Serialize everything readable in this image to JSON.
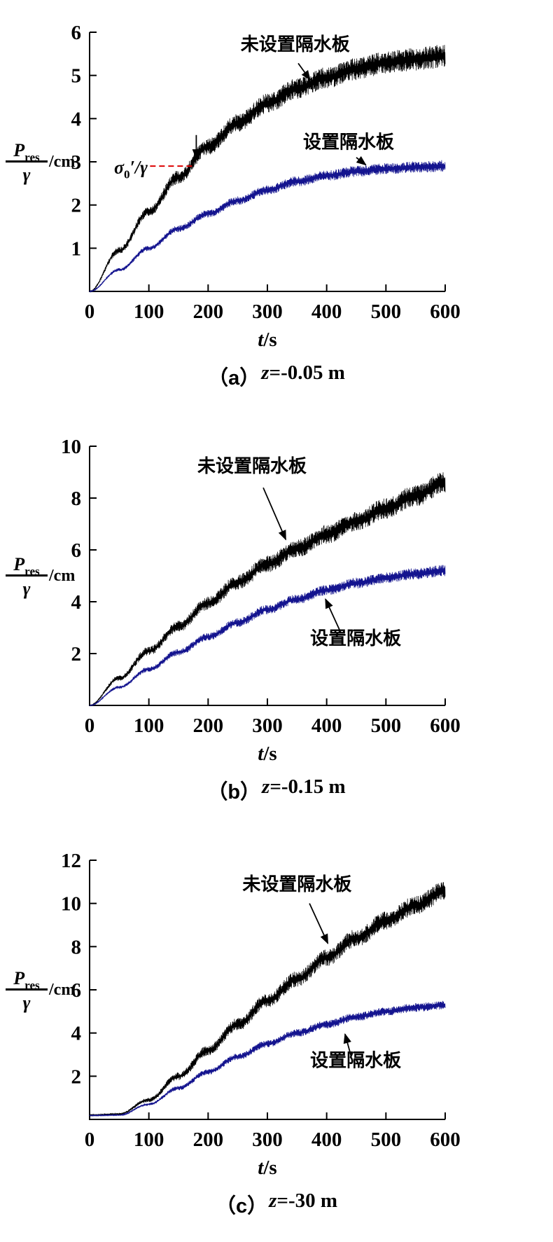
{
  "page": {
    "background": "#ffffff"
  },
  "colors": {
    "black_series": "#000000",
    "blue_series": "#14148f",
    "ref_line_red": "#dd0000"
  },
  "chart_data": [
    {
      "type": "line",
      "caption": {
        "index": "（a）",
        "var": "z",
        "value": "=-0.05 m"
      },
      "xlim": [
        0,
        600
      ],
      "ylim": [
        0,
        6
      ],
      "xticks": [
        0,
        100,
        200,
        300,
        400,
        500,
        600
      ],
      "yticks": [
        1,
        2,
        3,
        4,
        5,
        6
      ],
      "xlabel_parts": [
        {
          "t": "t",
          "i": 1
        },
        {
          "t": "/s"
        }
      ],
      "ylabel": {
        "num_parts": [
          {
            "t": "P",
            "i": 1
          },
          {
            "t": "res",
            "sub": 1
          }
        ],
        "den_parts": [
          {
            "t": "γ",
            "i": 1
          }
        ],
        "unit": "/cm"
      },
      "x": [
        0,
        50,
        100,
        150,
        200,
        250,
        300,
        350,
        400,
        450,
        500,
        550,
        600
      ],
      "series": [
        {
          "key": "without-plate",
          "name": "未设置隔水板",
          "color": "#000000",
          "values": [
            0,
            0.95,
            1.85,
            2.65,
            3.35,
            3.9,
            4.35,
            4.7,
            4.95,
            5.15,
            5.3,
            5.38,
            5.45
          ],
          "amp": [
            0.02,
            0.08,
            0.12,
            0.16,
            0.19,
            0.21,
            0.23,
            0.24,
            0.25,
            0.26,
            0.26,
            0.27,
            0.27
          ],
          "label": {
            "text": "未设置隔水板",
            "x": 347,
            "y": 5.58
          },
          "arrow": {
            "x1": 352,
            "y1": 5.28,
            "x2": 372,
            "y2": 4.9
          }
        },
        {
          "key": "with-plate",
          "name": "设置隔水板",
          "color": "#14148f",
          "values": [
            0,
            0.5,
            1.0,
            1.45,
            1.8,
            2.1,
            2.35,
            2.55,
            2.68,
            2.78,
            2.84,
            2.88,
            2.9
          ],
          "amp": [
            0.01,
            0.04,
            0.06,
            0.08,
            0.09,
            0.1,
            0.11,
            0.12,
            0.12,
            0.13,
            0.13,
            0.13,
            0.14
          ],
          "label": {
            "text": "设置隔水板",
            "x": 437,
            "y": 3.32
          },
          "arrow": {
            "x1": 450,
            "y1": 3.1,
            "x2": 466,
            "y2": 2.93
          }
        }
      ],
      "ref_line": {
        "y": 2.9,
        "x1": 102,
        "x2": 174,
        "color": "#dd0000",
        "label_parts": [
          {
            "t": "σ",
            "i": 1
          },
          {
            "t": "0",
            "sub": 1
          },
          {
            "t": "′/γ",
            "i": 1
          }
        ],
        "label_x": 98,
        "label_y": 2.88,
        "arrow": {
          "x": 180,
          "y1": 3.62,
          "y2": 3.08
        }
      }
    },
    {
      "type": "line",
      "caption": {
        "index": "（b）",
        "var": "z",
        "value": "=-0.15 m"
      },
      "xlim": [
        0,
        600
      ],
      "ylim": [
        0,
        10
      ],
      "xticks": [
        0,
        100,
        200,
        300,
        400,
        500,
        600
      ],
      "yticks": [
        2,
        4,
        6,
        8,
        10
      ],
      "xlabel_parts": [
        {
          "t": "t",
          "i": 1
        },
        {
          "t": "/s"
        }
      ],
      "ylabel": {
        "num_parts": [
          {
            "t": "P",
            "i": 1
          },
          {
            "t": "res",
            "sub": 1
          }
        ],
        "den_parts": [
          {
            "t": "γ",
            "i": 1
          }
        ],
        "unit": "/cm"
      },
      "x": [
        0,
        50,
        100,
        150,
        200,
        250,
        300,
        350,
        400,
        450,
        500,
        550,
        600
      ],
      "series": [
        {
          "key": "without-plate",
          "name": "未设置隔水板",
          "color": "#000000",
          "values": [
            0,
            1.05,
            2.1,
            3.05,
            3.95,
            4.75,
            5.45,
            6.05,
            6.6,
            7.1,
            7.6,
            8.1,
            8.6
          ],
          "amp": [
            0.02,
            0.1,
            0.17,
            0.22,
            0.26,
            0.3,
            0.33,
            0.35,
            0.37,
            0.38,
            0.4,
            0.41,
            0.42
          ],
          "label": {
            "text": "未设置隔水板",
            "x": 274,
            "y": 9.0
          },
          "arrow": {
            "x1": 293,
            "y1": 8.4,
            "x2": 331,
            "y2": 6.4
          }
        },
        {
          "key": "with-plate",
          "name": "设置隔水板",
          "color": "#14148f",
          "values": [
            0,
            0.7,
            1.4,
            2.05,
            2.65,
            3.2,
            3.7,
            4.1,
            4.45,
            4.72,
            4.92,
            5.08,
            5.2
          ],
          "amp": [
            0.01,
            0.06,
            0.1,
            0.13,
            0.15,
            0.17,
            0.18,
            0.19,
            0.2,
            0.21,
            0.21,
            0.22,
            0.22
          ],
          "label": {
            "text": "设置隔水板",
            "x": 449,
            "y": 2.35
          },
          "arrow": {
            "x1": 424,
            "y1": 2.8,
            "x2": 398,
            "y2": 4.1
          }
        }
      ]
    },
    {
      "type": "line",
      "caption": {
        "index": "（c）",
        "var": "z",
        "value": "=-30 m"
      },
      "xlim": [
        0,
        600
      ],
      "ylim": [
        0,
        12
      ],
      "xticks": [
        0,
        100,
        200,
        300,
        400,
        500,
        600
      ],
      "yticks": [
        2,
        4,
        6,
        8,
        10,
        12
      ],
      "xlabel_parts": [
        {
          "t": "t",
          "i": 1
        },
        {
          "t": "/s"
        }
      ],
      "ylabel": {
        "num_parts": [
          {
            "t": "P",
            "i": 1
          },
          {
            "t": "res",
            "sub": 1
          }
        ],
        "den_parts": [
          {
            "t": "γ",
            "i": 1
          }
        ],
        "unit": "/cm"
      },
      "x": [
        0,
        50,
        100,
        150,
        200,
        250,
        300,
        350,
        400,
        450,
        500,
        550,
        600
      ],
      "series": [
        {
          "key": "without-plate",
          "name": "未设置隔水板",
          "color": "#000000",
          "values": [
            0.2,
            0.25,
            0.9,
            2.0,
            3.2,
            4.4,
            5.5,
            6.5,
            7.5,
            8.4,
            9.2,
            9.9,
            10.6
          ],
          "amp": [
            0.03,
            0.04,
            0.1,
            0.18,
            0.25,
            0.3,
            0.34,
            0.37,
            0.4,
            0.42,
            0.43,
            0.45,
            0.46
          ],
          "label": {
            "text": "未设置隔水板",
            "x": 350,
            "y": 10.6
          },
          "arrow": {
            "x1": 371,
            "y1": 10.0,
            "x2": 402,
            "y2": 8.15
          }
        },
        {
          "key": "with-plate",
          "name": "设置隔水板",
          "color": "#14148f",
          "values": [
            0.18,
            0.2,
            0.7,
            1.45,
            2.2,
            2.9,
            3.5,
            4.0,
            4.4,
            4.75,
            5.0,
            5.18,
            5.3
          ],
          "amp": [
            0.02,
            0.02,
            0.06,
            0.1,
            0.13,
            0.15,
            0.17,
            0.18,
            0.19,
            0.2,
            0.2,
            0.21,
            0.21
          ],
          "label": {
            "text": "设置隔水板",
            "x": 449,
            "y": 2.45
          },
          "arrow": {
            "x1": 441,
            "y1": 2.95,
            "x2": 431,
            "y2": 3.95
          }
        }
      ]
    }
  ]
}
